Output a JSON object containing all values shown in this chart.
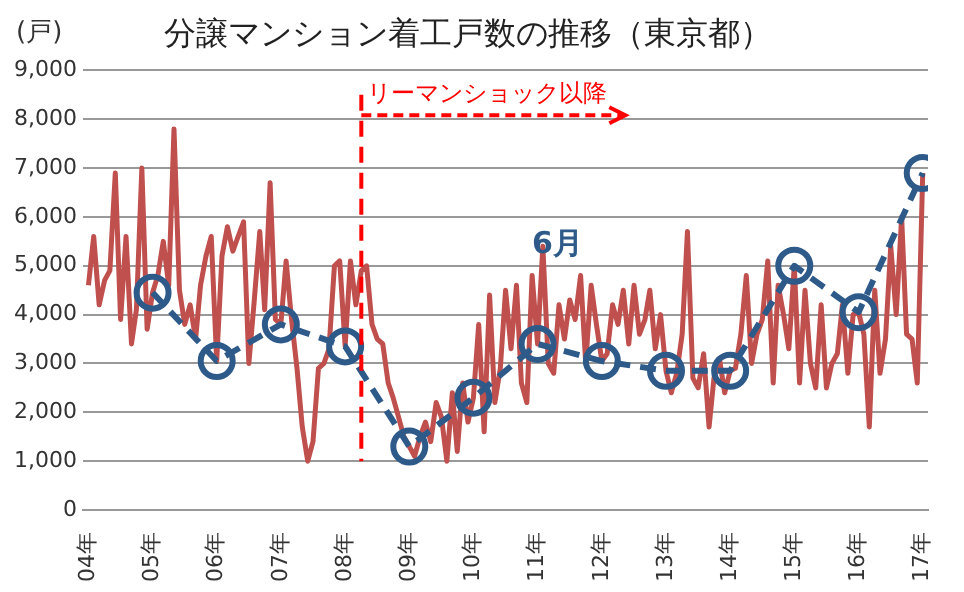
{
  "chart_data": {
    "type": "line",
    "title": "分譲マンション着工戸数の推移（東京都）",
    "ylabel": "(戸)",
    "x": [
      "2004-06",
      "2004-07",
      "2004-08",
      "2004-09",
      "2004-10",
      "2004-11",
      "2004-12",
      "2005-01",
      "2005-02",
      "2005-03",
      "2005-04",
      "2005-05",
      "2005-06",
      "2005-07",
      "2005-08",
      "2005-09",
      "2005-10",
      "2005-11",
      "2005-12",
      "2006-01",
      "2006-02",
      "2006-03",
      "2006-04",
      "2006-05",
      "2006-06",
      "2006-07",
      "2006-08",
      "2006-09",
      "2006-10",
      "2006-11",
      "2006-12",
      "2007-01",
      "2007-02",
      "2007-03",
      "2007-04",
      "2007-05",
      "2007-06",
      "2007-07",
      "2007-08",
      "2007-09",
      "2007-10",
      "2007-11",
      "2007-12",
      "2008-01",
      "2008-02",
      "2008-03",
      "2008-04",
      "2008-05",
      "2008-06",
      "2008-07",
      "2008-08",
      "2008-09",
      "2008-10",
      "2008-11",
      "2008-12",
      "2009-01",
      "2009-02",
      "2009-03",
      "2009-04",
      "2009-05",
      "2009-06",
      "2009-07",
      "2009-08",
      "2009-09",
      "2009-10",
      "2009-11",
      "2009-12",
      "2010-01",
      "2010-02",
      "2010-03",
      "2010-04",
      "2010-05",
      "2010-06",
      "2010-07",
      "2010-08",
      "2010-09",
      "2010-10",
      "2010-11",
      "2010-12",
      "2011-01",
      "2011-02",
      "2011-03",
      "2011-04",
      "2011-05",
      "2011-06",
      "2011-07",
      "2011-08",
      "2011-09",
      "2011-10",
      "2011-11",
      "2011-12",
      "2012-01",
      "2012-02",
      "2012-03",
      "2012-04",
      "2012-05",
      "2012-06",
      "2012-07",
      "2012-08",
      "2012-09",
      "2012-10",
      "2012-11",
      "2012-12",
      "2013-01",
      "2013-02",
      "2013-03",
      "2013-04",
      "2013-05",
      "2013-06",
      "2013-07",
      "2013-08",
      "2013-09",
      "2013-10",
      "2013-11",
      "2013-12",
      "2014-01",
      "2014-02",
      "2014-03",
      "2014-04",
      "2014-05",
      "2014-06",
      "2014-07",
      "2014-08",
      "2014-09",
      "2014-10",
      "2014-11",
      "2014-12",
      "2015-01",
      "2015-02",
      "2015-03",
      "2015-04",
      "2015-05",
      "2015-06",
      "2015-07",
      "2015-08",
      "2015-09",
      "2015-10",
      "2015-11",
      "2015-12",
      "2016-01",
      "2016-02",
      "2016-03",
      "2016-04",
      "2016-05",
      "2016-06",
      "2016-07",
      "2016-08",
      "2016-09",
      "2016-10",
      "2016-11",
      "2016-12",
      "2017-01",
      "2017-02",
      "2017-03",
      "2017-04",
      "2017-05",
      "2017-06"
    ],
    "series": [
      {
        "color": "#c0504d",
        "marker": "none",
        "line_style": "solid",
        "values": [
          4600,
          5600,
          4200,
          4700,
          4900,
          6900,
          3900,
          5600,
          3400,
          4100,
          7000,
          3700,
          4450,
          4800,
          5500,
          4600,
          7800,
          4500,
          3800,
          4200,
          3500,
          4600,
          5200,
          5600,
          3050,
          5200,
          5800,
          5300,
          5600,
          5900,
          3000,
          4300,
          5700,
          4100,
          6700,
          3900,
          3800,
          5100,
          3900,
          2900,
          1700,
          1000,
          1400,
          2900,
          3000,
          3300,
          5000,
          5100,
          3350,
          5100,
          4200,
          4900,
          5000,
          3800,
          3500,
          3400,
          2600,
          2300,
          1900,
          1500,
          1300,
          1100,
          1500,
          1800,
          1400,
          2200,
          1900,
          1000,
          2400,
          1200,
          2600,
          1800,
          2300,
          3800,
          1600,
          4400,
          2200,
          2900,
          4500,
          3300,
          4600,
          2600,
          2200,
          4800,
          3400,
          5400,
          3000,
          2800,
          4200,
          3500,
          4300,
          3900,
          4800,
          3000,
          4600,
          3800,
          3050,
          3200,
          4200,
          3800,
          4500,
          3400,
          4600,
          3600,
          3900,
          4500,
          3300,
          4000,
          2850,
          2400,
          2800,
          3600,
          5700,
          2700,
          2500,
          3200,
          1700,
          2700,
          3100,
          2400,
          2850,
          2900,
          3600,
          4800,
          3000,
          3600,
          3900,
          5100,
          2600,
          4600,
          4000,
          3300,
          5000,
          2600,
          4500,
          3000,
          2500,
          4200,
          2500,
          3000,
          3200,
          4200,
          2800,
          4000,
          4050,
          3600,
          1700,
          4500,
          2800,
          3500,
          5400,
          4000,
          6000,
          3600,
          3500,
          2600,
          6900
        ]
      },
      {
        "name": "6月",
        "color": "#2e5a8a",
        "marker": "circle",
        "line_style": "dashed",
        "x": [
          "2005-06",
          "2006-06",
          "2007-06",
          "2008-06",
          "2009-06",
          "2010-06",
          "2011-06",
          "2012-06",
          "2013-06",
          "2014-06",
          "2015-06",
          "2016-06",
          "2017-06"
        ],
        "values": [
          4450,
          3050,
          3800,
          3350,
          1300,
          2300,
          3400,
          3050,
          2850,
          2850,
          5000,
          4050,
          6900
        ]
      }
    ],
    "xlim": [
      "2004-05",
      "2017-07"
    ],
    "xticks": [
      {
        "value": "2004-06",
        "label": "04年"
      },
      {
        "value": "2005-06",
        "label": "05年"
      },
      {
        "value": "2006-06",
        "label": "06年"
      },
      {
        "value": "2007-06",
        "label": "07年"
      },
      {
        "value": "2008-06",
        "label": "08年"
      },
      {
        "value": "2009-06",
        "label": "09年"
      },
      {
        "value": "2010-06",
        "label": "10年"
      },
      {
        "value": "2011-06",
        "label": "11年"
      },
      {
        "value": "2012-06",
        "label": "12年"
      },
      {
        "value": "2013-06",
        "label": "13年"
      },
      {
        "value": "2014-06",
        "label": "14年"
      },
      {
        "value": "2015-06",
        "label": "15年"
      },
      {
        "value": "2016-06",
        "label": "16年"
      },
      {
        "value": "2017-06",
        "label": "17年"
      }
    ],
    "ylim": [
      0,
      9000
    ],
    "yticks": [
      0,
      {
        "value": 1000,
        "label": "1,000"
      },
      {
        "value": 2000,
        "label": "2,000"
      },
      {
        "value": 3000,
        "label": "3,000"
      },
      {
        "value": 4000,
        "label": "4,000"
      },
      {
        "value": 5000,
        "label": "5,000"
      },
      {
        "value": 6000,
        "label": "6,000"
      },
      {
        "value": 7000,
        "label": "7,000"
      },
      {
        "value": 8000,
        "label": "8,000"
      },
      {
        "value": 9000,
        "label": "9,000"
      }
    ],
    "ref_lines": [
      {
        "axis": "x",
        "value": "2008-09",
        "label": "リーマンショック以降",
        "color": "#ff0000",
        "line_style": "dashed"
      }
    ],
    "grid": "y",
    "legend": false
  }
}
